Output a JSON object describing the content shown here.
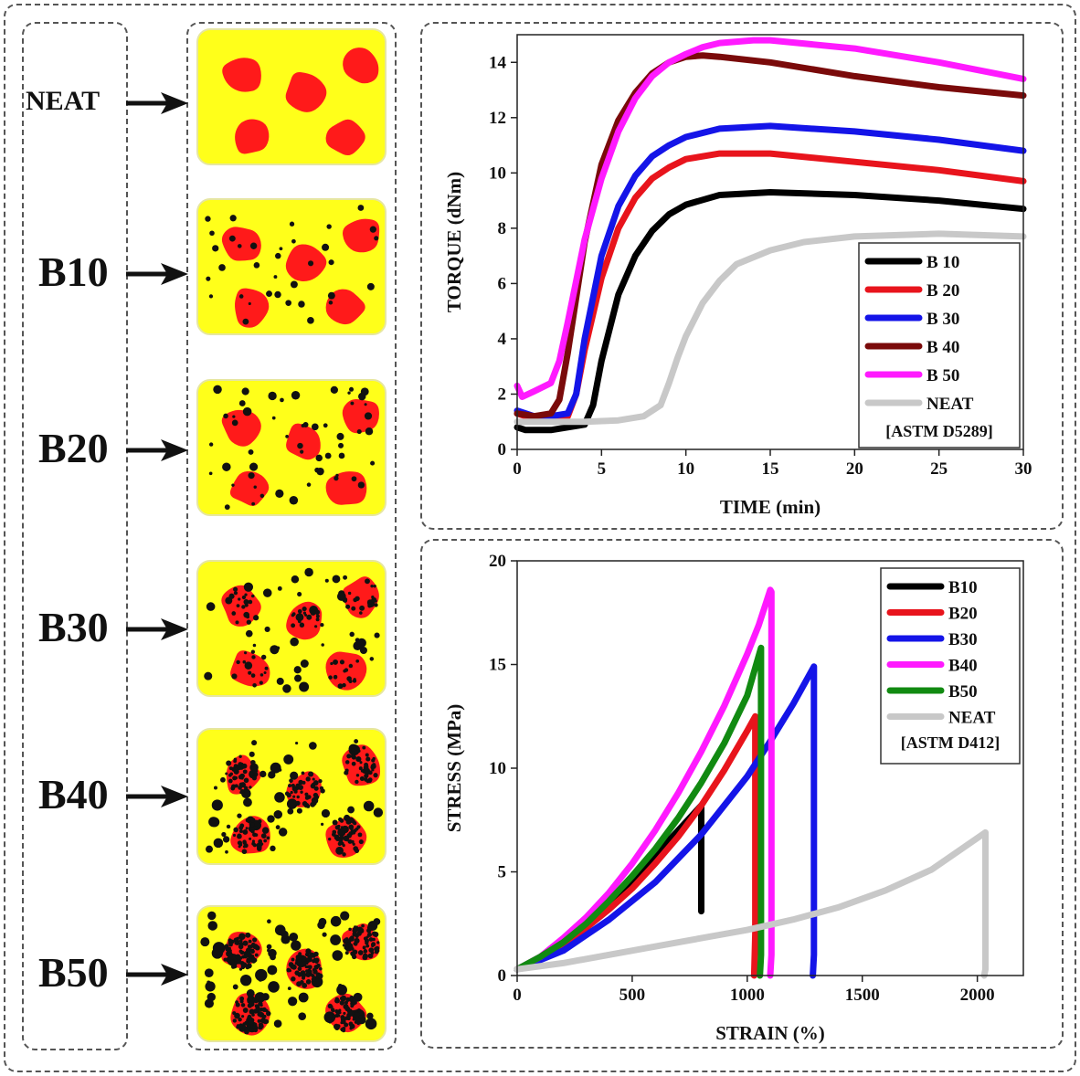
{
  "samples": [
    {
      "label": "NEAT",
      "small": true
    },
    {
      "label": "B10"
    },
    {
      "label": "B20"
    },
    {
      "label": "B30"
    },
    {
      "label": "B40"
    },
    {
      "label": "B50"
    }
  ],
  "colors": {
    "matrix": "#ffff1a",
    "domain": "#ff1a1a",
    "filler": "#111111",
    "frame": "#555555"
  },
  "chart_data": [
    {
      "type": "line",
      "xlabel": "TIME (min)",
      "ylabel": "TORQUE (dNm)",
      "xlim": [
        0,
        30
      ],
      "ylim": [
        0,
        15
      ],
      "xticks": [
        "0",
        "5",
        "10",
        "15",
        "20",
        "25",
        "30"
      ],
      "yticks": [
        "0",
        "2",
        "4",
        "6",
        "8",
        "10",
        "12",
        "14"
      ],
      "legend_position": "lower-right",
      "legend_note": "[ASTM D5289]",
      "series": [
        {
          "name": "B 10",
          "color": "#000000",
          "x": [
            0,
            0.5,
            2,
            3,
            4,
            4.5,
            5,
            6,
            7,
            8,
            9,
            10,
            12,
            15,
            20,
            25,
            30
          ],
          "y": [
            0.8,
            0.7,
            0.7,
            0.8,
            0.9,
            1.6,
            3.2,
            5.6,
            7.0,
            7.9,
            8.5,
            8.85,
            9.2,
            9.3,
            9.2,
            9.0,
            8.7
          ]
        },
        {
          "name": "B 20",
          "color": "#e8141c",
          "x": [
            0,
            1,
            2,
            3,
            3.5,
            4,
            5,
            6,
            7,
            8,
            9,
            10,
            12,
            15,
            20,
            25,
            30
          ],
          "y": [
            1.3,
            1.1,
            1.1,
            1.2,
            2.0,
            3.6,
            6.2,
            8.0,
            9.1,
            9.8,
            10.2,
            10.5,
            10.7,
            10.7,
            10.4,
            10.1,
            9.7
          ]
        },
        {
          "name": "B 30",
          "color": "#1414e8",
          "x": [
            0,
            1,
            2,
            3,
            3.5,
            4,
            5,
            6,
            7,
            8,
            9,
            10,
            12,
            15,
            20,
            25,
            30
          ],
          "y": [
            1.4,
            1.2,
            1.2,
            1.3,
            2.0,
            4.0,
            7.0,
            8.8,
            9.9,
            10.6,
            11.0,
            11.3,
            11.6,
            11.7,
            11.5,
            11.2,
            10.8
          ]
        },
        {
          "name": "B 40",
          "color": "#7a0a0a",
          "x": [
            0,
            1,
            2,
            2.5,
            3,
            4,
            5,
            6,
            7,
            8,
            9,
            10,
            11,
            12,
            15,
            20,
            25,
            30
          ],
          "y": [
            1.3,
            1.2,
            1.3,
            1.8,
            3.5,
            7.5,
            10.3,
            11.9,
            12.9,
            13.6,
            14.0,
            14.2,
            14.25,
            14.2,
            14.0,
            13.5,
            13.1,
            12.8
          ]
        },
        {
          "name": "B 50",
          "color": "#ff1aff",
          "x": [
            0,
            0.3,
            1,
            2,
            2.5,
            3,
            4,
            5,
            6,
            7,
            8,
            9,
            10,
            11,
            12,
            14,
            15,
            20,
            25,
            30
          ],
          "y": [
            2.3,
            1.9,
            2.1,
            2.4,
            3.2,
            4.6,
            7.6,
            9.8,
            11.5,
            12.7,
            13.5,
            14.0,
            14.3,
            14.55,
            14.7,
            14.8,
            14.8,
            14.5,
            14.0,
            13.4
          ]
        },
        {
          "name": "NEAT",
          "color": "#c8c8c8",
          "x": [
            0,
            2,
            4,
            6,
            7.5,
            8.5,
            9,
            9.5,
            10,
            11,
            12,
            13,
            15,
            17,
            20,
            25,
            30
          ],
          "y": [
            1.0,
            1.0,
            1.0,
            1.05,
            1.2,
            1.6,
            2.4,
            3.3,
            4.1,
            5.3,
            6.1,
            6.7,
            7.2,
            7.5,
            7.7,
            7.8,
            7.7
          ]
        }
      ]
    },
    {
      "type": "line",
      "xlabel": "STRAIN (%)",
      "ylabel": "STRESS (MPa)",
      "xlim": [
        0,
        2200
      ],
      "ylim": [
        0,
        20
      ],
      "xticks": [
        "0",
        "500",
        "1000",
        "1500",
        "2000"
      ],
      "yticks": [
        "0",
        "5",
        "10",
        "15",
        "20"
      ],
      "legend_position": "top-right",
      "legend_note": "[ASTM D412]",
      "series": [
        {
          "name": "B10",
          "color": "#000000",
          "x": [
            0,
            100,
            200,
            300,
            400,
            500,
            600,
            700,
            800,
            800
          ],
          "y": [
            0.3,
            0.8,
            1.5,
            2.3,
            3.3,
            4.5,
            5.8,
            7.0,
            8.2,
            3.1
          ]
        },
        {
          "name": "B20",
          "color": "#e8141c",
          "x": [
            0,
            100,
            200,
            300,
            400,
            500,
            600,
            700,
            800,
            900,
            1000,
            1035,
            1035,
            1030
          ],
          "y": [
            0.3,
            0.8,
            1.5,
            2.3,
            3.2,
            4.2,
            5.4,
            6.7,
            8.2,
            9.9,
            11.8,
            12.5,
            2.0,
            0.0
          ]
        },
        {
          "name": "B30",
          "color": "#1414e8",
          "x": [
            0,
            200,
            400,
            600,
            800,
            1000,
            1100,
            1200,
            1290,
            1290,
            1285
          ],
          "y": [
            0.3,
            1.2,
            2.7,
            4.5,
            6.8,
            9.6,
            11.3,
            13.1,
            14.9,
            1.0,
            0.0
          ]
        },
        {
          "name": "B40",
          "color": "#ff1aff",
          "x": [
            0,
            100,
            200,
            300,
            400,
            500,
            600,
            700,
            800,
            900,
            1000,
            1050,
            1100,
            1105,
            1105,
            1100
          ],
          "y": [
            0.3,
            0.9,
            1.8,
            2.8,
            4.0,
            5.4,
            7.0,
            8.8,
            10.8,
            13.0,
            15.5,
            16.9,
            18.6,
            18.5,
            1.0,
            0.0
          ]
        },
        {
          "name": "B50",
          "color": "#118a11",
          "x": [
            0,
            100,
            200,
            300,
            400,
            500,
            600,
            700,
            800,
            900,
            1000,
            1060,
            1060,
            1055
          ],
          "y": [
            0.3,
            0.9,
            1.6,
            2.5,
            3.6,
            4.8,
            6.1,
            7.6,
            9.3,
            11.2,
            13.5,
            15.8,
            1.0,
            0.0
          ]
        },
        {
          "name": "NEAT",
          "color": "#c8c8c8",
          "x": [
            0,
            200,
            400,
            600,
            800,
            1000,
            1200,
            1400,
            1600,
            1800,
            2035,
            2035,
            2030
          ],
          "y": [
            0.3,
            0.6,
            1.0,
            1.4,
            1.8,
            2.2,
            2.7,
            3.3,
            4.1,
            5.1,
            6.9,
            0.3,
            0.0
          ]
        }
      ]
    }
  ]
}
